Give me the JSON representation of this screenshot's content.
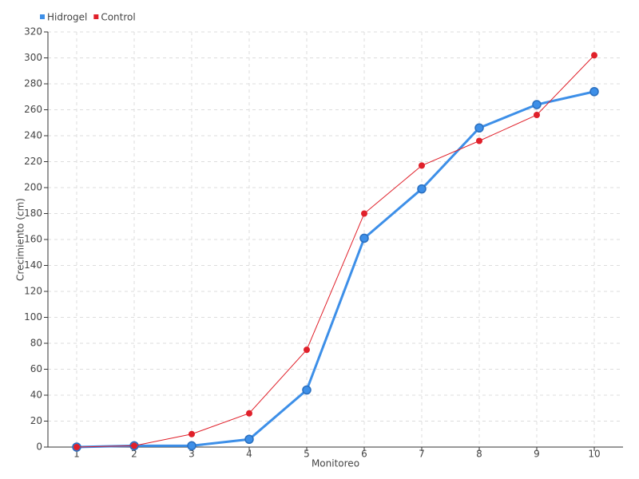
{
  "chart_data": {
    "type": "line",
    "x_label": "Monitoreo",
    "y_label": "Crecimiento (cm)",
    "x": [
      1,
      2,
      3,
      4,
      5,
      6,
      7,
      8,
      9,
      10
    ],
    "xlim": [
      0.5,
      10.5
    ],
    "xticks": [
      1,
      2,
      3,
      4,
      5,
      6,
      7,
      8,
      9,
      10
    ],
    "ylim": [
      0,
      320
    ],
    "yticks": [
      0,
      20,
      40,
      60,
      80,
      100,
      120,
      140,
      160,
      180,
      200,
      220,
      240,
      260,
      280,
      300,
      320
    ],
    "grid": true,
    "legend": "top-left",
    "series": [
      {
        "name": "Hidrogel",
        "color": "#3d8fe8",
        "values": [
          0,
          1,
          1,
          6,
          44,
          161,
          199,
          246,
          264,
          274
        ]
      },
      {
        "name": "Control",
        "color": "#e0202a",
        "values": [
          0,
          1,
          10,
          26,
          75,
          180,
          217,
          236,
          256,
          302
        ]
      }
    ]
  }
}
